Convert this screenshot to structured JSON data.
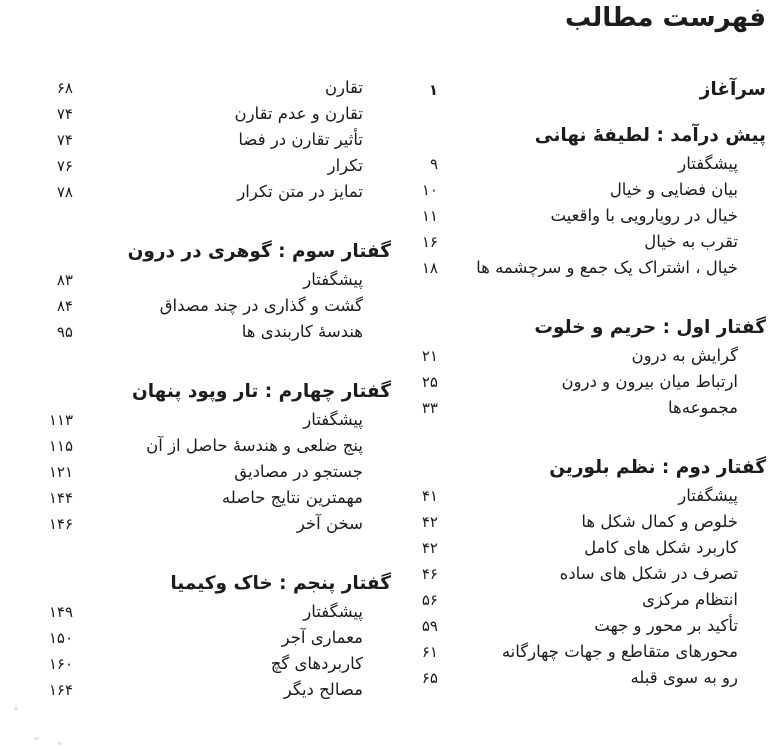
{
  "title": "فهرست مطالب",
  "colors": {
    "ink": "#1c1c1c",
    "paper": "#ffffff"
  },
  "columns": {
    "right": [
      {
        "type": "heading",
        "label": "سرآغاز",
        "page": "۱"
      },
      {
        "type": "gap",
        "small": true
      },
      {
        "type": "heading",
        "label": "پیش درآمد : لطیفۀ نهانی"
      },
      {
        "type": "item",
        "label": "پیشگفتار",
        "page": "۹"
      },
      {
        "type": "item",
        "label": "بیان فضایی و خیال",
        "page": "۱۰"
      },
      {
        "type": "item",
        "label": "خیال در رویارویی با واقعیت",
        "page": "۱۱"
      },
      {
        "type": "item",
        "label": "تقرب به خیال",
        "page": "۱۶"
      },
      {
        "type": "item",
        "label": "خیال ، اشتراک یک جمع و سرچشمه ها",
        "page": "۱۸"
      },
      {
        "type": "gap"
      },
      {
        "type": "heading",
        "label": "گفتار اول : حریم و خلوت"
      },
      {
        "type": "item",
        "label": "گرایش به درون",
        "page": "۲۱"
      },
      {
        "type": "item",
        "label": "ارتباط میان بیرون و درون",
        "page": "۲۵"
      },
      {
        "type": "item",
        "label": "مجموعه‌ها",
        "page": "۳۳"
      },
      {
        "type": "gap"
      },
      {
        "type": "heading",
        "label": "گفتار دوم : نظم بلورین"
      },
      {
        "type": "item",
        "label": "پیشگفتار",
        "page": "۴۱"
      },
      {
        "type": "item",
        "label": "خلوص و کمال شکل ها",
        "page": "۴۲"
      },
      {
        "type": "item",
        "label": "کاربرد شکل های کامل",
        "page": "۴۲"
      },
      {
        "type": "item",
        "label": "تصرف در شکل های ساده",
        "page": "۴۶"
      },
      {
        "type": "item",
        "label": "انتظام مرکزی",
        "page": "۵۶"
      },
      {
        "type": "item",
        "label": "تأکید بر محور و جهت",
        "page": "۵۹"
      },
      {
        "type": "item",
        "label": "محورهای متقاطع و جهات چهارگانه",
        "page": "۶۱"
      },
      {
        "type": "item",
        "label": "رو به سوی قبله",
        "page": "۶۵"
      }
    ],
    "left": [
      {
        "type": "item",
        "label": "تقارن",
        "page": "۶۸"
      },
      {
        "type": "item",
        "label": "تقارن و عدم تقارن",
        "page": "۷۴"
      },
      {
        "type": "item",
        "label": "تأثیر تقارن در فضا",
        "page": "۷۴"
      },
      {
        "type": "item",
        "label": "تکرار",
        "page": "۷۶"
      },
      {
        "type": "item",
        "label": "تمایز در متن تکرار",
        "page": "۷۸"
      },
      {
        "type": "gap"
      },
      {
        "type": "heading",
        "label": "گفتار سوم : گوهری در درون"
      },
      {
        "type": "item",
        "label": "پیشگفتار",
        "page": "۸۳"
      },
      {
        "type": "item",
        "label": "گشت و گذاری در چند مصداق",
        "page": "۸۴"
      },
      {
        "type": "item",
        "label": "هندسۀ کاربندی ها",
        "page": "۹۵"
      },
      {
        "type": "gap"
      },
      {
        "type": "heading",
        "label": "گفتار چهارم : تار وپود پنهان"
      },
      {
        "type": "item",
        "label": "پیشگفتار",
        "page": "۱۱۳"
      },
      {
        "type": "item",
        "label": "پنج ضلعی و هندسۀ حاصل از آن",
        "page": "۱۱۵"
      },
      {
        "type": "item",
        "label": "جستجو در مصادیق",
        "page": "۱۲۱"
      },
      {
        "type": "item",
        "label": "مهمترین نتایج حاصله",
        "page": "۱۴۴"
      },
      {
        "type": "item",
        "label": "سخن آخر",
        "page": "۱۴۶"
      },
      {
        "type": "gap"
      },
      {
        "type": "heading",
        "label": "گفتار پنجم : خاک وکیمیا"
      },
      {
        "type": "item",
        "label": "پیشگفتار",
        "page": "۱۴۹"
      },
      {
        "type": "item",
        "label": "معماری آجر",
        "page": "۱۵۰"
      },
      {
        "type": "item",
        "label": "کاربردهای گچ",
        "page": "۱۶۰"
      },
      {
        "type": "item",
        "label": "مصالح دیگر",
        "page": "۱۶۴"
      }
    ]
  }
}
